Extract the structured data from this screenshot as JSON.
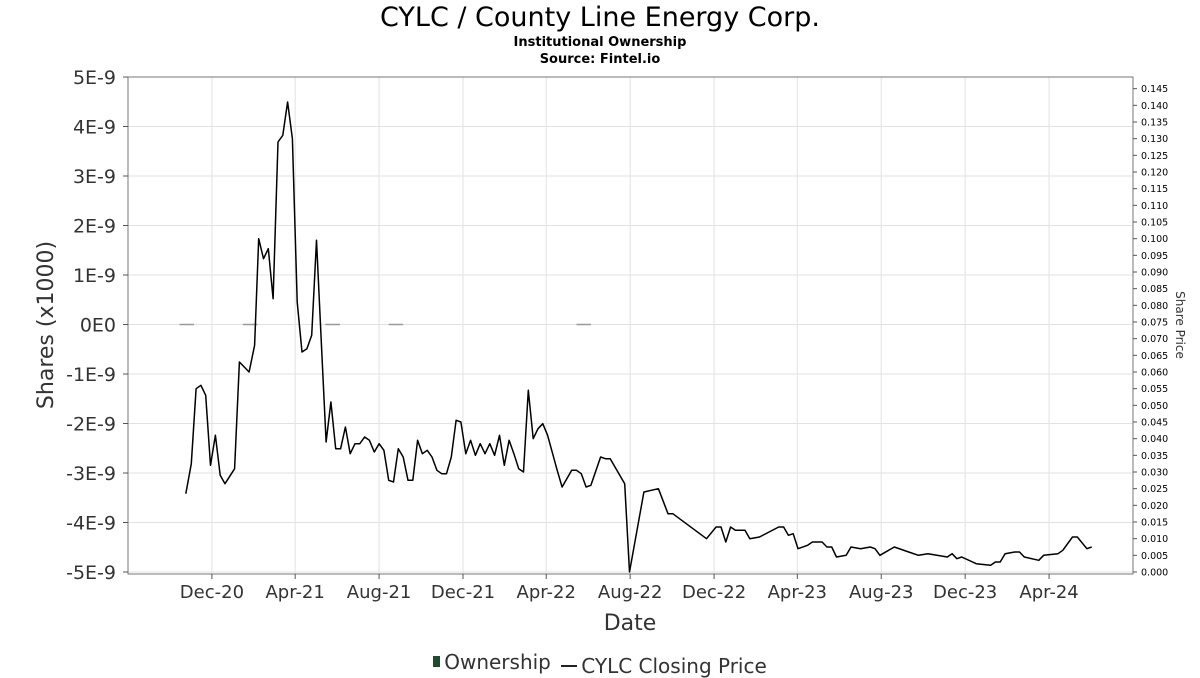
{
  "chart_data": {
    "type": "line",
    "title": "CYLC / County Line Energy Corp.",
    "subtitle_lines": [
      "Institutional Ownership",
      "Source: Fintel.io"
    ],
    "xlabel": "Date",
    "ylabel_left": "Shares (x1000)",
    "ylabel_right": "Share Price",
    "x_ticks": [
      {
        "label": "Dec-20",
        "date": "2020-12-01"
      },
      {
        "label": "Apr-21",
        "date": "2021-04-01"
      },
      {
        "label": "Aug-21",
        "date": "2021-08-01"
      },
      {
        "label": "Dec-21",
        "date": "2021-12-01"
      },
      {
        "label": "Apr-22",
        "date": "2022-04-01"
      },
      {
        "label": "Aug-22",
        "date": "2022-08-01"
      },
      {
        "label": "Dec-22",
        "date": "2022-12-01"
      },
      {
        "label": "Apr-23",
        "date": "2023-04-01"
      },
      {
        "label": "Aug-23",
        "date": "2023-08-01"
      },
      {
        "label": "Dec-23",
        "date": "2023-12-01"
      },
      {
        "label": "Apr-24",
        "date": "2024-04-01"
      }
    ],
    "xlim": [
      "2020-08-01",
      "2024-08-01"
    ],
    "y_left_ticks": [
      "5E-9",
      "4E-9",
      "3E-9",
      "2E-9",
      "1E-9",
      "0E0",
      "-1E-9",
      "-2E-9",
      "-3E-9",
      "-4E-9",
      "-5E-9"
    ],
    "y_left_lim": [
      -5e-09,
      5e-09
    ],
    "y_right_ticks": [
      "0.145",
      "0.140",
      "0.135",
      "0.130",
      "0.125",
      "0.120",
      "0.115",
      "0.110",
      "0.105",
      "0.100",
      "0.095",
      "0.090",
      "0.085",
      "0.080",
      "0.075",
      "0.070",
      "0.065",
      "0.060",
      "0.055",
      "0.050",
      "0.045",
      "0.040",
      "0.035",
      "0.030",
      "0.025",
      "0.020",
      "0.015",
      "0.010",
      "0.005",
      "0.000"
    ],
    "y_right_lim": [
      0,
      0.1485
    ],
    "grid": true,
    "legend": "bottom-center",
    "series": [
      {
        "name": "Ownership",
        "color": "#1e4d2b",
        "axis": "left",
        "segments": [
          {
            "start": "2020-10-15",
            "end": "2020-11-05",
            "value": 0
          },
          {
            "start": "2021-01-15",
            "end": "2021-02-05",
            "value": 0
          },
          {
            "start": "2021-05-15",
            "end": "2021-06-05",
            "value": 0
          },
          {
            "start": "2021-08-15",
            "end": "2021-09-05",
            "value": 0
          },
          {
            "start": "2022-05-15",
            "end": "2022-06-05",
            "value": 0
          }
        ]
      },
      {
        "name": "CYLC Closing Price",
        "color": "#000000",
        "axis": "right",
        "points": [
          [
            "2020-10-24",
            0.0235
          ],
          [
            "2020-11-01",
            0.0325
          ],
          [
            "2020-11-08",
            0.055
          ],
          [
            "2020-11-15",
            0.056
          ],
          [
            "2020-11-22",
            0.053
          ],
          [
            "2020-11-29",
            0.032
          ],
          [
            "2020-12-06",
            0.041
          ],
          [
            "2020-12-13",
            0.029
          ],
          [
            "2020-12-20",
            0.0265
          ],
          [
            "2021-01-03",
            0.031
          ],
          [
            "2021-01-10",
            0.063
          ],
          [
            "2021-01-24",
            0.06
          ],
          [
            "2021-02-01",
            0.068
          ],
          [
            "2021-02-07",
            0.1
          ],
          [
            "2021-02-14",
            0.094
          ],
          [
            "2021-02-21",
            0.097
          ],
          [
            "2021-02-28",
            0.082
          ],
          [
            "2021-03-07",
            0.129
          ],
          [
            "2021-03-14",
            0.131
          ],
          [
            "2021-03-21",
            0.141
          ],
          [
            "2021-03-28",
            0.13
          ],
          [
            "2021-04-04",
            0.081
          ],
          [
            "2021-04-11",
            0.066
          ],
          [
            "2021-04-18",
            0.067
          ],
          [
            "2021-04-25",
            0.071
          ],
          [
            "2021-05-02",
            0.0995
          ],
          [
            "2021-05-09",
            0.069
          ],
          [
            "2021-05-16",
            0.039
          ],
          [
            "2021-05-23",
            0.051
          ],
          [
            "2021-05-30",
            0.037
          ],
          [
            "2021-06-06",
            0.037
          ],
          [
            "2021-06-13",
            0.0435
          ],
          [
            "2021-06-20",
            0.0355
          ],
          [
            "2021-06-27",
            0.0385
          ],
          [
            "2021-07-04",
            0.0385
          ],
          [
            "2021-07-11",
            0.0405
          ],
          [
            "2021-07-18",
            0.0395
          ],
          [
            "2021-07-25",
            0.036
          ],
          [
            "2021-08-01",
            0.0385
          ],
          [
            "2021-08-08",
            0.0365
          ],
          [
            "2021-08-15",
            0.0275
          ],
          [
            "2021-08-22",
            0.027
          ],
          [
            "2021-08-29",
            0.037
          ],
          [
            "2021-09-05",
            0.0345
          ],
          [
            "2021-09-12",
            0.0275
          ],
          [
            "2021-09-19",
            0.0275
          ],
          [
            "2021-09-26",
            0.0395
          ],
          [
            "2021-10-03",
            0.0355
          ],
          [
            "2021-10-10",
            0.0365
          ],
          [
            "2021-10-17",
            0.0345
          ],
          [
            "2021-10-24",
            0.0305
          ],
          [
            "2021-10-31",
            0.0295
          ],
          [
            "2021-11-07",
            0.0295
          ],
          [
            "2021-11-14",
            0.0345
          ],
          [
            "2021-11-21",
            0.0455
          ],
          [
            "2021-11-28",
            0.045
          ],
          [
            "2021-12-05",
            0.0355
          ],
          [
            "2021-12-12",
            0.0395
          ],
          [
            "2021-12-19",
            0.035
          ],
          [
            "2021-12-26",
            0.0385
          ],
          [
            "2022-01-02",
            0.0355
          ],
          [
            "2022-01-09",
            0.0385
          ],
          [
            "2022-01-16",
            0.035
          ],
          [
            "2022-01-23",
            0.041
          ],
          [
            "2022-01-30",
            0.032
          ],
          [
            "2022-02-06",
            0.0395
          ],
          [
            "2022-02-13",
            0.0355
          ],
          [
            "2022-02-20",
            0.031
          ],
          [
            "2022-02-27",
            0.03
          ],
          [
            "2022-03-06",
            0.0545
          ],
          [
            "2022-03-13",
            0.04
          ],
          [
            "2022-03-20",
            0.043
          ],
          [
            "2022-03-27",
            0.0445
          ],
          [
            "2022-04-03",
            0.041
          ],
          [
            "2022-04-17",
            0.0305
          ],
          [
            "2022-04-24",
            0.0255
          ],
          [
            "2022-05-08",
            0.0305
          ],
          [
            "2022-05-15",
            0.0305
          ],
          [
            "2022-05-22",
            0.0295
          ],
          [
            "2022-05-29",
            0.0255
          ],
          [
            "2022-06-05",
            0.026
          ],
          [
            "2022-06-19",
            0.0345
          ],
          [
            "2022-06-26",
            0.034
          ],
          [
            "2022-07-03",
            0.034
          ],
          [
            "2022-07-24",
            0.0265
          ],
          [
            "2022-07-31",
            0.0
          ],
          [
            "2022-08-21",
            0.024
          ],
          [
            "2022-09-11",
            0.025
          ],
          [
            "2022-09-25",
            0.0175
          ],
          [
            "2022-10-02",
            0.0175
          ],
          [
            "2022-11-20",
            0.01
          ],
          [
            "2022-12-04",
            0.0135
          ],
          [
            "2022-12-11",
            0.0135
          ],
          [
            "2022-12-18",
            0.009
          ],
          [
            "2022-12-25",
            0.0135
          ],
          [
            "2023-01-01",
            0.0125
          ],
          [
            "2023-01-15",
            0.0125
          ],
          [
            "2023-01-22",
            0.01
          ],
          [
            "2023-02-05",
            0.0105
          ],
          [
            "2023-02-19",
            0.012
          ],
          [
            "2023-03-05",
            0.0135
          ],
          [
            "2023-03-12",
            0.0135
          ],
          [
            "2023-03-19",
            0.011
          ],
          [
            "2023-03-26",
            0.0115
          ],
          [
            "2023-04-02",
            0.007
          ],
          [
            "2023-04-16",
            0.008
          ],
          [
            "2023-04-23",
            0.009
          ],
          [
            "2023-05-07",
            0.009
          ],
          [
            "2023-05-14",
            0.0075
          ],
          [
            "2023-05-21",
            0.0075
          ],
          [
            "2023-05-28",
            0.0045
          ],
          [
            "2023-06-11",
            0.005
          ],
          [
            "2023-06-18",
            0.0075
          ],
          [
            "2023-07-02",
            0.007
          ],
          [
            "2023-07-16",
            0.0075
          ],
          [
            "2023-07-23",
            0.007
          ],
          [
            "2023-07-30",
            0.005
          ],
          [
            "2023-08-20",
            0.0075
          ],
          [
            "2023-09-10",
            0.006
          ],
          [
            "2023-09-24",
            0.005
          ],
          [
            "2023-10-08",
            0.0055
          ],
          [
            "2023-11-05",
            0.0045
          ],
          [
            "2023-11-12",
            0.0055
          ],
          [
            "2023-11-19",
            0.004
          ],
          [
            "2023-11-26",
            0.0045
          ],
          [
            "2023-12-17",
            0.0025
          ],
          [
            "2024-01-07",
            0.002
          ],
          [
            "2024-01-14",
            0.003
          ],
          [
            "2024-01-21",
            0.003
          ],
          [
            "2024-01-28",
            0.0055
          ],
          [
            "2024-02-11",
            0.006
          ],
          [
            "2024-02-18",
            0.006
          ],
          [
            "2024-02-25",
            0.0045
          ],
          [
            "2024-03-17",
            0.0035
          ],
          [
            "2024-03-24",
            0.005
          ],
          [
            "2024-04-14",
            0.0055
          ],
          [
            "2024-04-21",
            0.0065
          ],
          [
            "2024-05-05",
            0.0105
          ],
          [
            "2024-05-12",
            0.0105
          ],
          [
            "2024-05-26",
            0.007
          ],
          [
            "2024-06-02",
            0.0075
          ]
        ]
      }
    ]
  }
}
